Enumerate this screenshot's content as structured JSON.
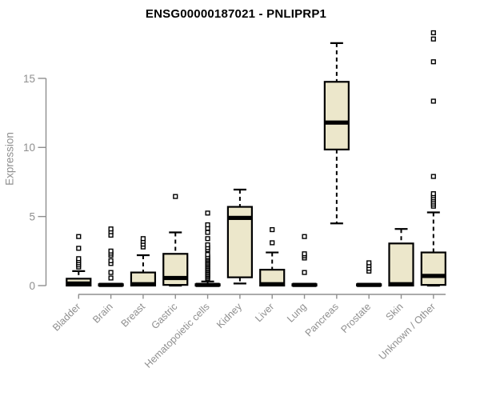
{
  "chart_data": {
    "type": "boxplot",
    "title": "ENSG00000187021 - PNLIPRP1",
    "ylabel": "Expression",
    "xlabel": "",
    "ylim": [
      0,
      18.6
    ],
    "yticks": [
      0,
      5,
      10,
      15
    ],
    "grid": false,
    "legend": false,
    "colors": {
      "box_fill": "#ece7cb",
      "box_stroke": "#000000",
      "median": "#000000",
      "axis": "#8f8f8f",
      "title": "#000000"
    },
    "categories": [
      "Bladder",
      "Brain",
      "Breast",
      "Gastric",
      "Hematopoietic cells",
      "Kidney",
      "Liver",
      "Lung",
      "Pancreas",
      "Prostate",
      "Skin",
      "Unknown / Other"
    ],
    "series": [
      {
        "name": "Bladder",
        "whisker_low": 0,
        "q1": 0,
        "median": 0.15,
        "q3": 0.5,
        "whisker_high": 1.05,
        "outliers": [
          1.35,
          1.5,
          1.65,
          1.8,
          1.95,
          2.7,
          3.55
        ]
      },
      {
        "name": "Brain",
        "whisker_low": 0,
        "q1": 0,
        "median": 0.05,
        "q3": 0.1,
        "whisker_high": 0.1,
        "outliers": [
          0.55,
          0.95,
          1.6,
          1.8,
          2.2,
          2.35,
          2.5,
          3.65,
          3.9,
          4.1
        ]
      },
      {
        "name": "Breast",
        "whisker_low": 0,
        "q1": 0,
        "median": 0.1,
        "q3": 0.95,
        "whisker_high": 2.2,
        "outliers": [
          2.8,
          3.0,
          3.2,
          3.4
        ]
      },
      {
        "name": "Gastric",
        "whisker_low": 0,
        "q1": 0.05,
        "median": 0.55,
        "q3": 2.3,
        "whisker_high": 3.85,
        "outliers": [
          6.45
        ]
      },
      {
        "name": "Hematopoietic cells",
        "whisker_low": 0,
        "q1": 0,
        "median": 0.05,
        "q3": 0.1,
        "whisker_high": 0.3,
        "outliers": [
          0.5,
          0.6,
          0.7,
          0.8,
          0.9,
          1.0,
          1.1,
          1.2,
          1.3,
          1.4,
          1.5,
          1.6,
          1.7,
          1.8,
          1.9,
          2.0,
          2.1,
          2.25,
          2.6,
          2.75,
          2.95,
          3.4,
          3.85,
          4.15,
          4.4,
          5.25
        ]
      },
      {
        "name": "Kidney",
        "whisker_low": 0.15,
        "q1": 0.6,
        "median": 4.9,
        "q3": 5.7,
        "whisker_high": 6.95,
        "outliers": []
      },
      {
        "name": "Liver",
        "whisker_low": 0,
        "q1": 0,
        "median": 0.1,
        "q3": 1.15,
        "whisker_high": 2.4,
        "outliers": [
          3.1,
          4.05
        ]
      },
      {
        "name": "Lung",
        "whisker_low": 0,
        "q1": 0,
        "median": 0.05,
        "q3": 0.1,
        "whisker_high": 0.1,
        "outliers": [
          0.95,
          2.0,
          2.15,
          2.3,
          3.55
        ]
      },
      {
        "name": "Pancreas",
        "whisker_low": 4.5,
        "q1": 9.85,
        "median": 11.8,
        "q3": 14.75,
        "whisker_high": 17.55,
        "outliers": []
      },
      {
        "name": "Prostate",
        "whisker_low": 0,
        "q1": 0,
        "median": 0.05,
        "q3": 0.1,
        "whisker_high": 0.1,
        "outliers": [
          1.05,
          1.25,
          1.45,
          1.65
        ]
      },
      {
        "name": "Skin",
        "whisker_low": 0,
        "q1": 0,
        "median": 0.1,
        "q3": 3.05,
        "whisker_high": 4.1,
        "outliers": []
      },
      {
        "name": "Unknown / Other",
        "whisker_low": 0,
        "q1": 0.05,
        "median": 0.7,
        "q3": 2.4,
        "whisker_high": 5.3,
        "outliers": [
          5.75,
          5.9,
          6.05,
          6.2,
          6.35,
          6.5,
          6.65,
          7.9,
          13.35,
          16.2,
          17.85,
          18.3
        ]
      }
    ]
  }
}
